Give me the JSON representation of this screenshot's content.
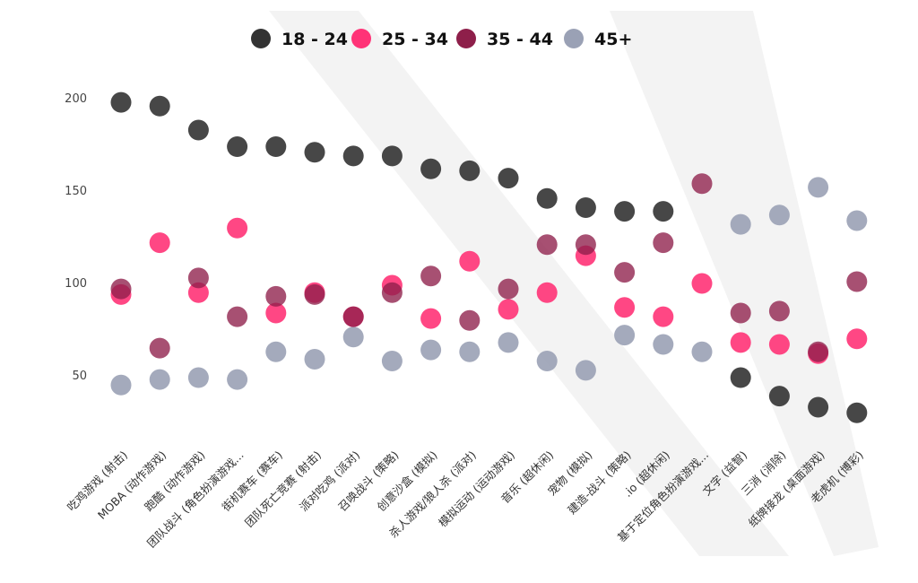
{
  "chart_data": {
    "type": "scatter",
    "title": "",
    "xlabel": "",
    "ylabel": "",
    "ylim": [
      25,
      210
    ],
    "yticks": [
      50,
      100,
      150,
      200
    ],
    "grid": false,
    "legend_position": "top-center",
    "categories": [
      "吃鸡游戏 (射击)",
      "MOBA (动作游戏)",
      "跑酷 (动作游戏)",
      "团队战斗 (角色扮演游戏...",
      "街机赛车 (赛车)",
      "团队死亡竞赛 (射击)",
      "派对吃鸡 (派对)",
      "召唤战斗 (策略)",
      "创意沙盒 (模拟)",
      "杀人游戏/狼人杀 (派对)",
      "模拟运动 (运动游戏)",
      "音乐 (超休闲)",
      "宠物 (模拟)",
      "建造-战斗 (策略)",
      ".io (超休闲)",
      "基于定位角色扮演游戏...",
      "文字 (益智)",
      "三消 (消除)",
      "纸牌接龙 (桌面游戏)",
      "老虎机 (博彩)"
    ],
    "series": [
      {
        "name": "18 - 24",
        "color": "#333333",
        "values": [
          198,
          196,
          183,
          174,
          174,
          171,
          169,
          169,
          162,
          161,
          157,
          146,
          141,
          139,
          139,
          null,
          49,
          39,
          33,
          30
        ]
      },
      {
        "name": "25 - 34",
        "color": "#ff3377",
        "values": [
          94,
          122,
          95,
          130,
          84,
          95,
          82,
          99,
          81,
          112,
          86,
          95,
          115,
          87,
          82,
          100,
          68,
          67,
          62,
          70
        ]
      },
      {
        "name": "35 - 44",
        "color": "#8e1f4a",
        "values": [
          97,
          65,
          103,
          82,
          93,
          94,
          82,
          95,
          104,
          80,
          97,
          121,
          121,
          106,
          122,
          154,
          84,
          85,
          63,
          101
        ]
      },
      {
        "name": "45+",
        "color": "#9aa1b5",
        "values": [
          45,
          48,
          49,
          48,
          63,
          59,
          71,
          58,
          64,
          63,
          68,
          58,
          53,
          72,
          67,
          63,
          132,
          137,
          152,
          134
        ]
      }
    ]
  }
}
